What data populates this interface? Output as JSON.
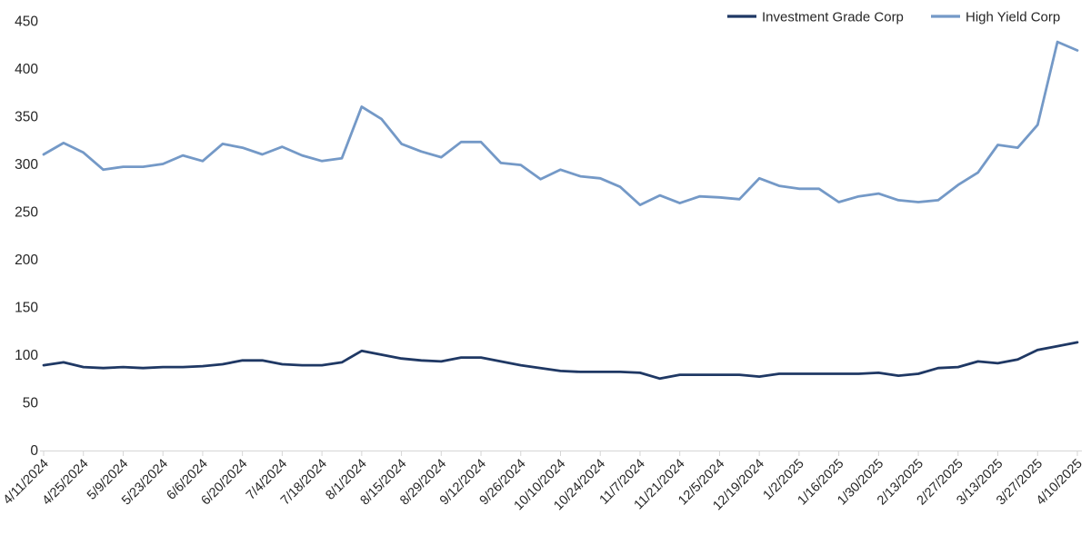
{
  "page": {
    "background": "#ffffff"
  },
  "legend": {
    "items": [
      {
        "label": "Investment Grade Corp",
        "color": "#1f3864"
      },
      {
        "label": "High Yield Corp",
        "color": "#7499c7"
      }
    ]
  },
  "axis": {
    "text_color": "#262626",
    "line_color": "#d6d6d6"
  },
  "chart_data": {
    "type": "line",
    "title": "",
    "xlabel": "",
    "ylabel": "",
    "ylim": [
      0,
      450
    ],
    "y_ticks": [
      0,
      50,
      100,
      150,
      200,
      250,
      300,
      350,
      400,
      450
    ],
    "grid": false,
    "legend_position": "top-right",
    "x": [
      "4/11/2024",
      "4/18/2024",
      "4/25/2024",
      "5/2/2024",
      "5/9/2024",
      "5/16/2024",
      "5/23/2024",
      "5/30/2024",
      "6/6/2024",
      "6/13/2024",
      "6/20/2024",
      "6/27/2024",
      "7/4/2024",
      "7/11/2024",
      "7/18/2024",
      "7/25/2024",
      "8/1/2024",
      "8/8/2024",
      "8/15/2024",
      "8/22/2024",
      "8/29/2024",
      "9/5/2024",
      "9/12/2024",
      "9/19/2024",
      "9/26/2024",
      "10/3/2024",
      "10/10/2024",
      "10/17/2024",
      "10/24/2024",
      "10/31/2024",
      "11/7/2024",
      "11/14/2024",
      "11/21/2024",
      "11/28/2024",
      "12/5/2024",
      "12/12/2024",
      "12/19/2024",
      "12/26/2024",
      "1/2/2025",
      "1/9/2025",
      "1/16/2025",
      "1/23/2025",
      "1/30/2025",
      "2/6/2025",
      "2/13/2025",
      "2/20/2025",
      "2/27/2025",
      "3/6/2025",
      "3/13/2025",
      "3/20/2025",
      "3/27/2025",
      "4/3/2025",
      "4/10/2025"
    ],
    "x_tick_labels": [
      "4/11/2024",
      "4/25/2024",
      "5/9/2024",
      "5/23/2024",
      "6/6/2024",
      "6/20/2024",
      "7/4/2024",
      "7/18/2024",
      "8/1/2024",
      "8/15/2024",
      "8/29/2024",
      "9/12/2024",
      "9/26/2024",
      "10/10/2024",
      "10/24/2024",
      "11/7/2024",
      "11/21/2024",
      "12/5/2024",
      "12/19/2024",
      "1/2/2025",
      "1/16/2025",
      "1/30/2025",
      "2/13/2025",
      "2/27/2025",
      "3/13/2025",
      "3/27/2025",
      "4/10/2025"
    ],
    "series": [
      {
        "name": "Investment Grade Corp",
        "color": "#1f3864",
        "values": [
          89,
          92,
          87,
          86,
          87,
          86,
          87,
          87,
          88,
          90,
          94,
          94,
          90,
          89,
          89,
          92,
          104,
          100,
          96,
          94,
          93,
          97,
          97,
          93,
          89,
          86,
          83,
          82,
          82,
          82,
          81,
          75,
          79,
          79,
          79,
          79,
          77,
          80,
          80,
          80,
          80,
          80,
          81,
          78,
          80,
          86,
          87,
          93,
          91,
          95,
          105,
          109,
          113
        ]
      },
      {
        "name": "High Yield Corp",
        "color": "#7499c7",
        "values": [
          310,
          322,
          312,
          294,
          297,
          297,
          300,
          309,
          303,
          321,
          317,
          310,
          318,
          309,
          303,
          306,
          360,
          347,
          321,
          313,
          307,
          323,
          323,
          301,
          299,
          284,
          294,
          287,
          285,
          276,
          257,
          267,
          259,
          266,
          265,
          263,
          285,
          277,
          274,
          274,
          260,
          266,
          269,
          262,
          260,
          262,
          278,
          291,
          320,
          317,
          341,
          428,
          419
        ]
      }
    ]
  }
}
